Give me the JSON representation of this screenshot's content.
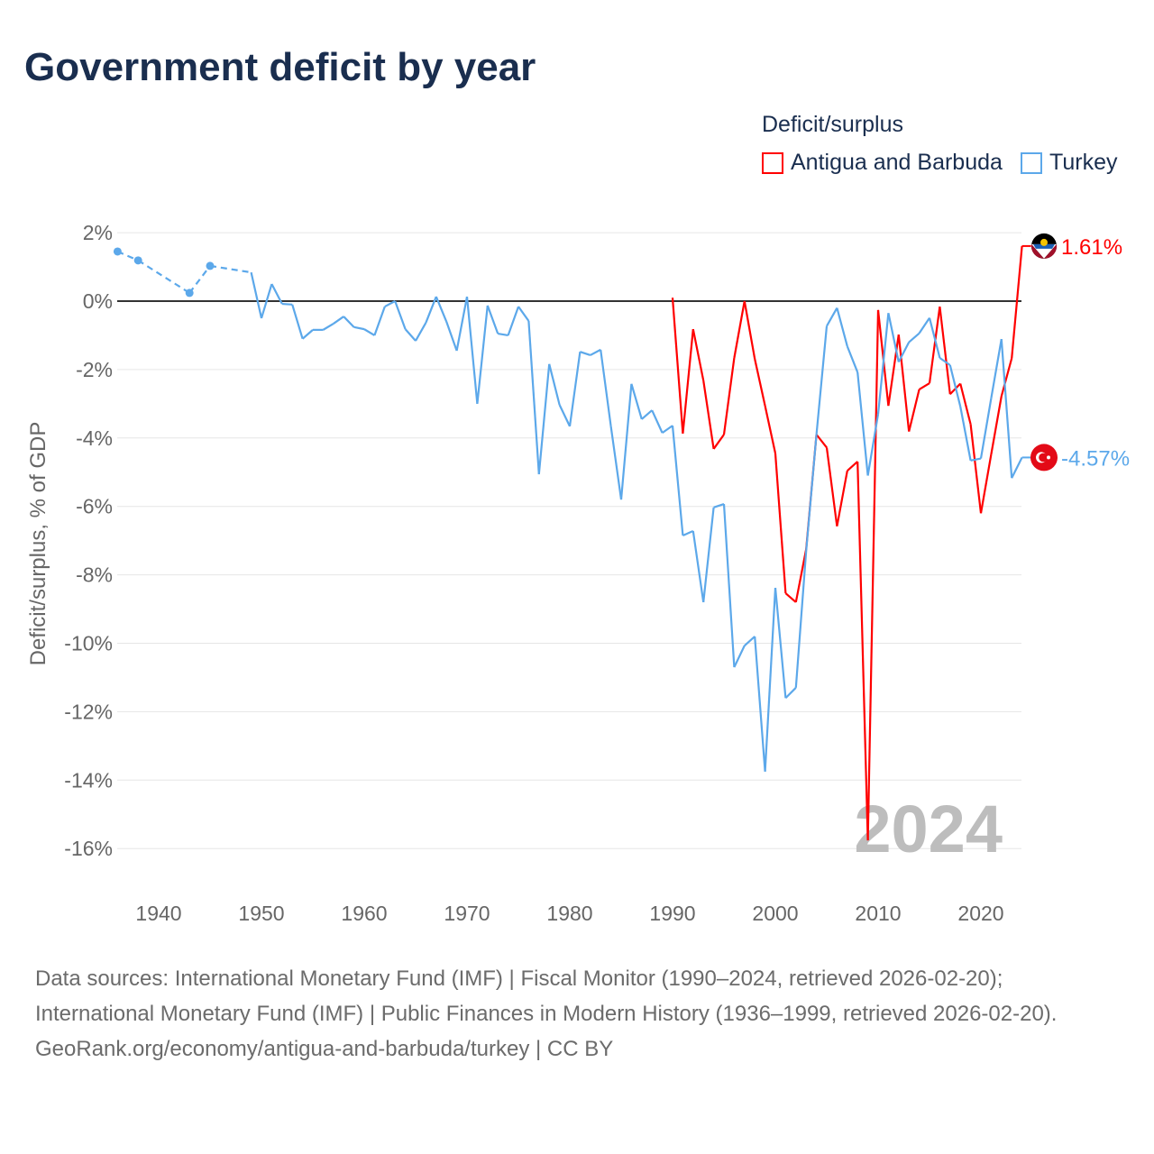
{
  "title": "Government deficit by year",
  "legend": {
    "title": "Deficit/surplus",
    "items": [
      {
        "label": "Antigua and Barbuda",
        "color": "#ff0000"
      },
      {
        "label": "Turkey",
        "color": "#5ca8ea"
      }
    ]
  },
  "watermark_year": "2024",
  "footer": {
    "sources": "Data sources: International Monetary Fund (IMF) | Fiscal Monitor (1990–2024, retrieved 2026-02-20); International Monetary Fund (IMF) | Public Finances in Modern History (1936–1999, retrieved 2026-02-20).",
    "credit": "GeoRank.org/economy/antigua-and-barbuda/turkey | CC BY"
  },
  "chart_data": {
    "type": "line",
    "title": "Government deficit by year",
    "xlabel": "",
    "ylabel": "Deficit/surplus, % of GDP",
    "xlim": [
      1936,
      2024
    ],
    "ylim": [
      -17,
      2.5
    ],
    "x_ticks": [
      1940,
      1950,
      1960,
      1970,
      1980,
      1990,
      2000,
      2010,
      2020
    ],
    "y_ticks": [
      2,
      0,
      -2,
      -4,
      -6,
      -8,
      -10,
      -12,
      -14,
      -16
    ],
    "y_tick_labels": [
      "2%",
      "0%",
      "-2%",
      "-4%",
      "-6%",
      "-8%",
      "-10%",
      "-12%",
      "-14%",
      "-16%"
    ],
    "grid": true,
    "legend_position": "top-right",
    "series": [
      {
        "name": "Antigua and Barbuda",
        "color": "#ff0000",
        "end_label": "1.61%",
        "x": [
          1990,
          1991,
          1992,
          1993,
          1994,
          1995,
          1996,
          1997,
          1998,
          1999,
          2000,
          2001,
          2002,
          2003,
          2004,
          2005,
          2006,
          2007,
          2008,
          2009,
          2010,
          2011,
          2012,
          2013,
          2014,
          2015,
          2016,
          2017,
          2018,
          2019,
          2020,
          2021,
          2022,
          2023,
          2024
        ],
        "y": [
          0.1,
          -3.87,
          -0.82,
          -2.32,
          -4.32,
          -3.9,
          -1.66,
          0,
          -1.69,
          -3.06,
          -4.45,
          -8.54,
          -8.8,
          -7.25,
          -3.9,
          -4.28,
          -6.58,
          -4.96,
          -4.69,
          -15.76,
          -0.26,
          -3.06,
          -0.98,
          -3.81,
          -2.58,
          -2.4,
          -0.16,
          -2.72,
          -2.41,
          -3.6,
          -6.2,
          -4.48,
          -2.78,
          -1.67,
          1.61
        ]
      },
      {
        "name": "Turkey",
        "color": "#5ca8ea",
        "end_label": "-4.57%",
        "x": [
          1936,
          1938,
          1943,
          1945,
          1949,
          1950,
          1951,
          1952,
          1953,
          1954,
          1955,
          1956,
          1957,
          1958,
          1959,
          1960,
          1961,
          1962,
          1963,
          1964,
          1965,
          1966,
          1967,
          1968,
          1969,
          1970,
          1971,
          1972,
          1973,
          1974,
          1975,
          1976,
          1977,
          1978,
          1979,
          1980,
          1981,
          1982,
          1983,
          1984,
          1985,
          1986,
          1987,
          1988,
          1989,
          1990,
          1991,
          1992,
          1993,
          1994,
          1995,
          1996,
          1997,
          1998,
          1999,
          2000,
          2001,
          2002,
          2003,
          2004,
          2005,
          2006,
          2007,
          2008,
          2009,
          2010,
          2011,
          2012,
          2013,
          2014,
          2015,
          2016,
          2017,
          2018,
          2019,
          2020,
          2021,
          2022,
          2023,
          2024
        ],
        "y": [
          1.45,
          1.19,
          0.24,
          1.03,
          0.84,
          -0.5,
          0.5,
          -0.08,
          -0.1,
          -1.1,
          -0.84,
          -0.84,
          -0.66,
          -0.45,
          -0.76,
          -0.82,
          -1.0,
          -0.16,
          0,
          -0.82,
          -1.16,
          -0.63,
          0.13,
          -0.6,
          -1.45,
          0.13,
          -3.0,
          -0.13,
          -0.95,
          -1.0,
          -0.16,
          -0.58,
          -5.06,
          -1.84,
          -3.03,
          -3.66,
          -1.48,
          -1.58,
          -1.42,
          -3.66,
          -5.8,
          -2.42,
          -3.45,
          -3.19,
          -3.85,
          -3.64,
          -6.85,
          -6.72,
          -8.8,
          -6.03,
          -5.93,
          -10.7,
          -10.07,
          -9.8,
          -13.75,
          -8.38,
          -11.6,
          -11.3,
          -7.3,
          -3.9,
          -0.73,
          -0.2,
          -1.32,
          -2.08,
          -5.1,
          -3.3,
          -0.35,
          -1.78,
          -1.2,
          -0.94,
          -0.49,
          -1.66,
          -1.87,
          -3.08,
          -4.66,
          -4.6,
          -2.84,
          -1.11,
          -5.17,
          -4.57
        ]
      }
    ]
  }
}
